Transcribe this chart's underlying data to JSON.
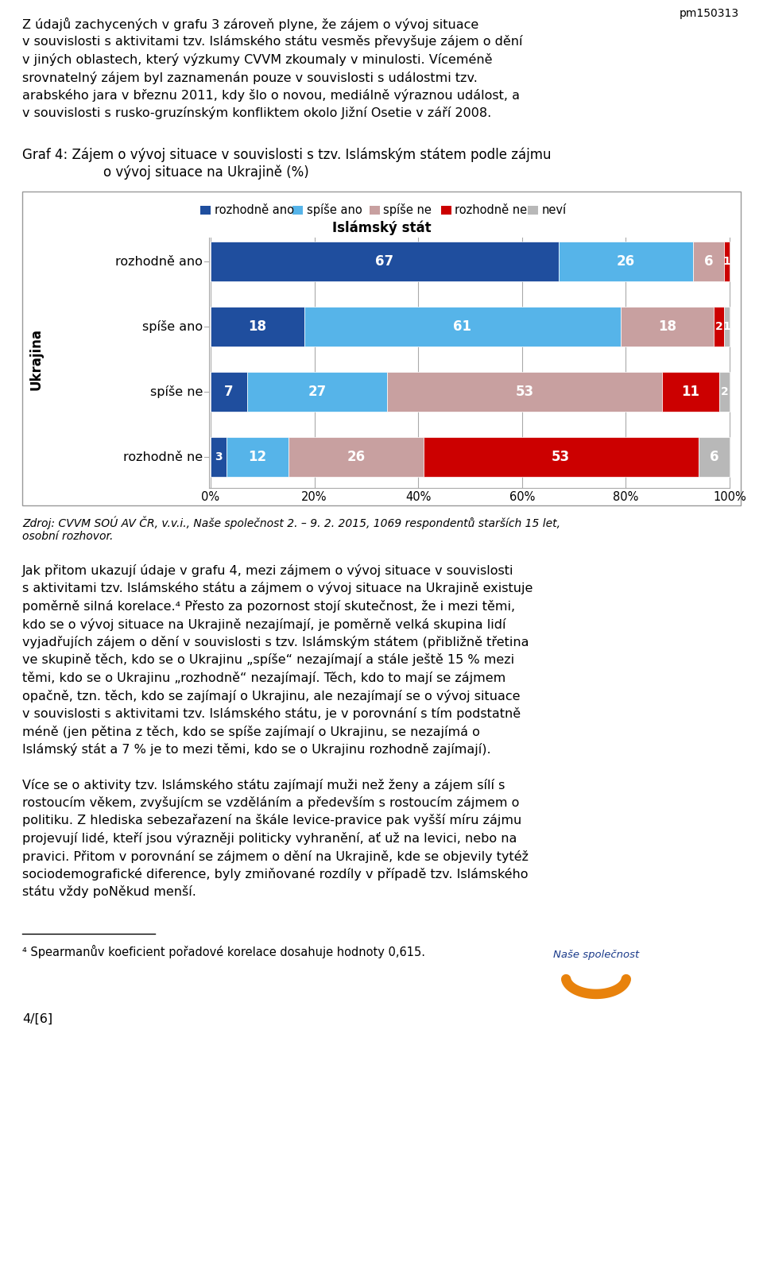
{
  "page_id": "pm150313",
  "page_num": "4/[6]",
  "legend_items": [
    "rozhodně ano",
    "spíše ano",
    "spíše ne",
    "rozhodně ne",
    "neví"
  ],
  "legend_colors": [
    "#1f4e9e",
    "#56b4e9",
    "#c8a0a0",
    "#cc0000",
    "#b8b8b8"
  ],
  "categories": [
    "rozhodně ano",
    "spíše ano",
    "spíše ne",
    "rozhodně ne"
  ],
  "cat_data": [
    [
      67,
      26,
      6,
      1,
      0
    ],
    [
      18,
      61,
      18,
      2,
      1
    ],
    [
      7,
      27,
      53,
      11,
      2
    ],
    [
      3,
      12,
      26,
      53,
      6
    ]
  ],
  "x_axis_label": "Islámský stát",
  "y_axis_label": "Ukrajina",
  "intro_lines": [
    "Z údajů zachycených v grafu 3 zároveň plyne, že zájem o vývoj situace",
    "v souvislosti s aktivitami tzv. Islámského státu vesměs převyšuje zájem o dění",
    "v jiných oblastech, který výzkumy CVVM zkoumaly v minulosti. Víceméně",
    "srovnatelný zájem byl zaznamenán pouze v souvislosti s událostmi tzv.",
    "arabského jara v březnu 2011, kdy šlo o novou, mediálně výraznou událost, a",
    "v souvislosti s rusko-gruzínským konfliktem okolo Jižní Osetie v září 2008."
  ],
  "chart_title_line1": "Graf 4: Zájem o vývoj situace v souvislosti s tzv. Islámským státem podle zájmu",
  "chart_title_line2": "o vývoj situace na Ukrajině (%)",
  "source_lines": [
    "Zdroj: CVVM SOÚ AV ČR, v.v.i., Naše společnost 2. – 9. 2. 2015, 1069 respondentů starších 15 let,",
    "osobní rozhovor."
  ],
  "body1_lines": [
    "Jak přitom ukazují údaje v grafu 4, mezi zájmem o vývoj situace v souvislosti",
    "s aktivitami tzv. Islámského státu a zájmem o vývoj situace na Ukrajině existuje",
    "poměrně silná korelace.⁴ Přesto za pozornost stojí skutečnost, že i mezi těmi,",
    "kdo se o vývoj situace na Ukrajině nezajímají, je poměrně velká skupina lidí",
    "vyjadřujích zájem o dění v souvislosti s tzv. Islámským státem (přibližně třetina",
    "ve skupině těch, kdo se o Ukrajinu „spíše“ nezajímají a stále ještě 15 % mezi",
    "těmi, kdo se o Ukrajinu „rozhodně“ nezajímají. Těch, kdo to mají se zájmem",
    "opačně, tzn. těch, kdo se zajímají o Ukrajinu, ale nezajímají se o vývoj situace",
    "v souvislosti s aktivitami tzv. Islámského státu, je v porovnání s tím podstatně",
    "méně (jen pětina z těch, kdo se spíše zajímají o Ukrajinu, se nezajímá o",
    "Islámský stát a 7 % je to mezi těmi, kdo se o Ukrajinu rozhodně zajímají)."
  ],
  "body2_lines": [
    "Více se o aktivity tzv. Islámského státu zajímají muži než ženy a zájem sílí s",
    "rostoucím věkem, zvyšujícm se vzděláním a především s rostoucím zájmem o",
    "politiku. Z hlediska sebezařazení na škále levice-pravice pak vyšší míru zájmu",
    "projevují lidé, kteří jsou výrazněji politicky vyhranění, ať už na levici, nebo na",
    "pravici. Přitom v porovnání se zájmem o dění na Ukrajině, kde se objevily tytéž",
    "sociodemografické diference, byly zmiňované rozdíly v případě tzv. Islámského",
    "státu vždy poNěkud menší."
  ],
  "footnote": "⁴ Spearmanův koeficient pořadové korelace dosahuje hodnoty 0,615."
}
